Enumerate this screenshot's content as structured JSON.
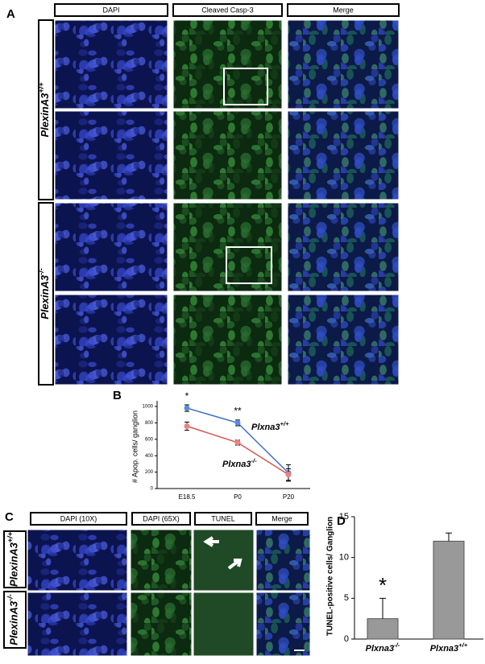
{
  "panel_a": {
    "label": "A",
    "columns": [
      "DAPI",
      "Cleaved Casp-3",
      "Merge"
    ],
    "rows": [
      "PlexinA3+/+",
      "PlexinA3-/-"
    ]
  },
  "panel_c": {
    "label": "C",
    "columns": [
      "DAPI (10X)",
      "DAPI (65X)",
      "TUNEL",
      "Merge"
    ],
    "rows": [
      "PlexinA3+/+",
      "PlexinA3-/-"
    ]
  },
  "chart_data": [
    {
      "type": "line",
      "label": "B",
      "ylabel": "# Apop. cells/ ganglion",
      "categories": [
        "E18.5",
        "P0",
        "P20"
      ],
      "series": [
        {
          "name": "Plxna3+/+",
          "color": "#3a6fc4",
          "values": [
            980,
            800,
            190
          ],
          "errors": [
            40,
            35,
            100
          ]
        },
        {
          "name": "Plxna3-/-",
          "color": "#d9534f",
          "values": [
            760,
            560,
            170
          ],
          "errors": [
            50,
            30,
            70
          ]
        }
      ],
      "significance": [
        "*",
        "**",
        null
      ],
      "ylim": [
        0,
        1000
      ],
      "yticks": [
        0,
        200,
        400,
        600,
        800,
        1000
      ]
    },
    {
      "type": "bar",
      "label": "D",
      "ylabel": "TUNEL-positive cells/ Ganglion",
      "categories": [
        "Plxna3-/-",
        "Plxna3+/+"
      ],
      "values": [
        2.5,
        12
      ],
      "errors": [
        2.5,
        1
      ],
      "significance": [
        "*",
        null
      ],
      "color": "#999999",
      "ylim": [
        0,
        15
      ],
      "yticks": [
        0,
        5,
        10,
        15
      ]
    }
  ]
}
